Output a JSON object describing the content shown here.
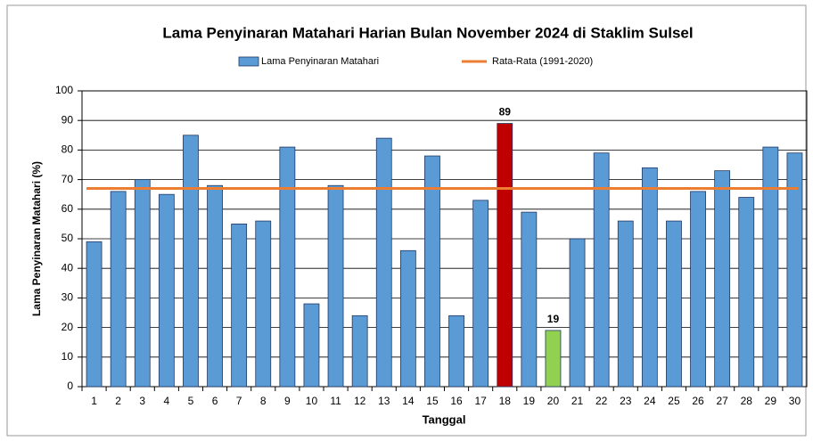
{
  "chart_data": {
    "type": "bar",
    "title": "Lama Penyinaran Matahari Harian Bulan November 2024 di Staklim Sulsel",
    "x_label": "Tanggal",
    "y_label": "Lama Penyinaran Matahari (%)",
    "categories": [
      "1",
      "2",
      "3",
      "4",
      "5",
      "6",
      "7",
      "8",
      "9",
      "10",
      "11",
      "12",
      "13",
      "14",
      "15",
      "16",
      "17",
      "18",
      "19",
      "20",
      "21",
      "22",
      "23",
      "24",
      "25",
      "26",
      "27",
      "28",
      "29",
      "30"
    ],
    "series": [
      {
        "name": "Lama Penyinaran Matahari",
        "color": "#5b9bd5",
        "values": [
          49,
          66,
          70,
          65,
          85,
          68,
          55,
          56,
          81,
          28,
          68,
          24,
          84,
          46,
          78,
          24,
          63,
          89,
          59,
          19,
          50,
          79,
          56,
          74,
          56,
          66,
          73,
          64,
          81,
          79
        ],
        "bar_colors": [
          "#5b9bd5",
          "#5b9bd5",
          "#5b9bd5",
          "#5b9bd5",
          "#5b9bd5",
          "#5b9bd5",
          "#5b9bd5",
          "#5b9bd5",
          "#5b9bd5",
          "#5b9bd5",
          "#5b9bd5",
          "#5b9bd5",
          "#5b9bd5",
          "#5b9bd5",
          "#5b9bd5",
          "#5b9bd5",
          "#5b9bd5",
          "#c00000",
          "#5b9bd5",
          "#92d050",
          "#5b9bd5",
          "#5b9bd5",
          "#5b9bd5",
          "#5b9bd5",
          "#5b9bd5",
          "#5b9bd5",
          "#5b9bd5",
          "#5b9bd5",
          "#5b9bd5",
          "#5b9bd5"
        ],
        "value_labels": [
          null,
          null,
          null,
          null,
          null,
          null,
          null,
          null,
          null,
          null,
          null,
          null,
          null,
          null,
          null,
          null,
          null,
          "89",
          null,
          "19",
          null,
          null,
          null,
          null,
          null,
          null,
          null,
          null,
          null,
          null
        ]
      }
    ],
    "reference": {
      "name": "Rata-Rata (1991-2020)",
      "color": "#ed7d31",
      "value": 67
    },
    "ylim": [
      0,
      100
    ],
    "yticks": [
      0,
      10,
      20,
      30,
      40,
      50,
      60,
      70,
      80,
      90,
      100
    ],
    "grid": true,
    "legend": "top"
  }
}
